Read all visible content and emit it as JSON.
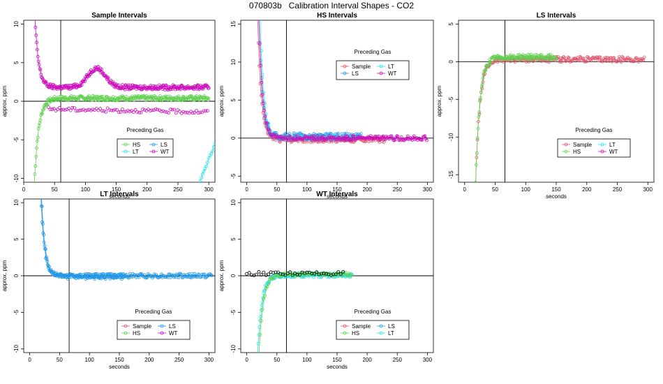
{
  "title": "070803b   Calibration Interval Shapes - CO2",
  "colors": {
    "Sample": "#df536b",
    "HS": "#61d04f",
    "LS": "#2297e6",
    "LT": "#28e2e5",
    "WT": "#cd0bbc",
    "Black": "#000000"
  },
  "chart_data": [
    {
      "type": "scatter",
      "title": "Sample Intervals",
      "xlabel": "seconds",
      "ylabel": "approx. ppm",
      "xlim": [
        0,
        310
      ],
      "ylim": [
        -10.5,
        10.5
      ],
      "xticks": [
        0,
        50,
        100,
        150,
        200,
        250,
        300
      ],
      "yticks": [
        -10,
        -5,
        0,
        5,
        10
      ],
      "vline": 60,
      "hline": 0,
      "legend_title": "Preceding Gas",
      "legend": [
        "HS",
        "LS",
        "LT",
        "WT"
      ],
      "series": [
        {
          "name": "HS",
          "color": "HS",
          "shape": "rise",
          "start": 17,
          "end": 300,
          "from": -11,
          "to": 0.4,
          "tau": 7,
          "noise": 0.3,
          "step": 1
        },
        {
          "name": "WT",
          "color": "WT",
          "shape": "decay",
          "start": 18,
          "end": 300,
          "from": 11,
          "to": 1.8,
          "tau": 6,
          "noise": 0.3,
          "step": 1,
          "bump": {
            "center": 118,
            "width": 20,
            "height": 2.5
          }
        },
        {
          "name": "WT",
          "color": "WT",
          "shape": "flat",
          "start": 40,
          "end": 300,
          "from": -1.0,
          "to": -1.4,
          "noise": 0.25,
          "step": 3
        },
        {
          "name": "LT",
          "color": "LT",
          "shape": "rise_tail",
          "start": 282,
          "end": 310,
          "from": -11,
          "to": -5.5,
          "noise": 0.2,
          "step": 2
        }
      ]
    },
    {
      "type": "scatter",
      "title": "HS Intervals",
      "xlabel": "seconds",
      "ylabel": "approx. ppm",
      "xlim": [
        -10,
        310
      ],
      "ylim": [
        -5.8,
        15.5
      ],
      "xticks": [
        0,
        50,
        100,
        150,
        200,
        250,
        300
      ],
      "yticks": [
        -5,
        0,
        5,
        10,
        15
      ],
      "vline": 66,
      "hline": 0,
      "legend_title": "Preceding Gas",
      "legend": [
        "Sample",
        "LT",
        "LS",
        "WT"
      ],
      "series": [
        {
          "name": "Sample",
          "color": "Sample",
          "shape": "decay",
          "start": 18,
          "end": 230,
          "from": 16,
          "to": -0.2,
          "tau": 6,
          "noise": 0.35,
          "step": 1.5
        },
        {
          "name": "LS",
          "color": "LS",
          "shape": "decay",
          "start": 20,
          "end": 190,
          "from": 16,
          "to": 0.2,
          "tau": 6,
          "noise": 0.45,
          "step": 1.5
        },
        {
          "name": "LT",
          "color": "LT",
          "shape": "decay",
          "start": 22,
          "end": 150,
          "from": 16,
          "to": 0.1,
          "tau": 6,
          "noise": 0.3,
          "step": 2
        },
        {
          "name": "WT",
          "color": "WT",
          "shape": "decay",
          "start": 20,
          "end": 300,
          "from": 16,
          "to": 0.0,
          "tau": 6,
          "noise": 0.3,
          "step": 1.5
        }
      ]
    },
    {
      "type": "scatter",
      "title": "LS Intervals",
      "xlabel": "seconds",
      "ylabel": "approx. ppm",
      "xlim": [
        -10,
        310
      ],
      "ylim": [
        -16,
        5.5
      ],
      "xticks": [
        0,
        50,
        100,
        150,
        200,
        250,
        300
      ],
      "yticks": [
        -15,
        -10,
        -5,
        0,
        5
      ],
      "vline": 66,
      "hline": 0,
      "legend_title": "Preceding Gas",
      "legend": [
        "Sample",
        "LT",
        "HS",
        "WT"
      ],
      "series": [
        {
          "name": "Sample",
          "color": "Sample",
          "shape": "rise",
          "start": 18,
          "end": 295,
          "from": -16,
          "to": 0.3,
          "tau": 7,
          "noise": 0.35,
          "step": 1.5
        },
        {
          "name": "HS",
          "color": "HS",
          "shape": "rise",
          "start": 18,
          "end": 150,
          "from": -16,
          "to": 0.6,
          "tau": 7,
          "noise": 0.35,
          "step": 1
        }
      ]
    },
    {
      "type": "scatter",
      "title": "LT Intervals",
      "xlabel": "seconds",
      "ylabel": "approx. ppm",
      "xlim": [
        -10,
        310
      ],
      "ylim": [
        -10.5,
        10.5
      ],
      "xticks": [
        0,
        50,
        100,
        150,
        200,
        250,
        300
      ],
      "yticks": [
        -10,
        -5,
        0,
        5,
        10
      ],
      "vline": 66,
      "hline": 0,
      "legend_title": "Preceding Gas",
      "legend": [
        "Sample",
        "LS",
        "HS",
        "WT"
      ],
      "series": [
        {
          "name": "LS",
          "color": "LS",
          "shape": "decay",
          "start": 18,
          "end": 305,
          "from": 12,
          "to": 0.0,
          "tau": 6,
          "noise": 0.3,
          "step": 1.5
        },
        {
          "name": "LS",
          "color": "LS",
          "shape": "decay",
          "start": 19,
          "end": 160,
          "from": 12,
          "to": -0.1,
          "tau": 6,
          "noise": 0.35,
          "step": 1.5
        }
      ]
    },
    {
      "type": "scatter",
      "title": "WT Intervals",
      "xlabel": "seconds",
      "ylabel": "approx. ppm",
      "xlim": [
        -10,
        310
      ],
      "ylim": [
        -10.5,
        10.5
      ],
      "xticks": [
        0,
        50,
        100,
        150,
        200,
        250,
        300
      ],
      "yticks": [
        -10,
        -5,
        0,
        5,
        10
      ],
      "vline": 66,
      "hline": 0,
      "legend_title": "Preceding Gas",
      "legend": [
        "Sample",
        "LS",
        "HS",
        "LT"
      ],
      "series": [
        {
          "name": "LT",
          "color": "LT",
          "shape": "rise",
          "start": 18,
          "end": 175,
          "from": -11,
          "to": 0.1,
          "tau": 7,
          "noise": 0.3,
          "step": 1
        },
        {
          "name": "HS",
          "color": "HS",
          "shape": "rise",
          "start": 20,
          "end": 175,
          "from": -11,
          "to": 0.2,
          "tau": 7,
          "noise": 0.25,
          "step": 2
        },
        {
          "name": "Black",
          "color": "Black",
          "shape": "flat",
          "start": 0,
          "end": 160,
          "from": 0.3,
          "to": 0.3,
          "noise": 0.25,
          "step": 4
        }
      ]
    }
  ]
}
